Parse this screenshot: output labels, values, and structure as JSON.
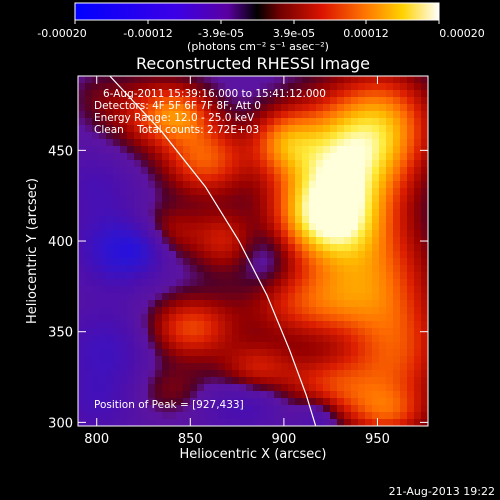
{
  "chart_data": {
    "type": "heatmap",
    "title": "Reconstructed RHESSI Image",
    "xlabel": "Heliocentric X (arcsec)",
    "ylabel": "Heliocentric Y (arcsec)",
    "xlim": [
      790,
      977
    ],
    "ylim": [
      298,
      491
    ],
    "xticks": [
      800,
      850,
      900,
      950
    ],
    "yticks": [
      300,
      350,
      400,
      450
    ],
    "colorbar": {
      "ticks": [
        "-0.00020",
        "-0.00012",
        "-3.9e-05",
        "3.9e-05",
        "0.00012",
        "0.00020"
      ],
      "tick_values": [
        -0.0002,
        -0.00012,
        -3.9e-05,
        3.9e-05,
        0.00012,
        0.0002
      ],
      "range": [
        -0.0002,
        0.0002
      ],
      "units": "(photons cm⁻² s⁻¹ asec⁻²)"
    },
    "annotations": [
      "6-Aug-2011 15:39:16.000 to 15:41:12.000",
      "Detectors: 4F 5F 6F 7F 8F, Att 0",
      "Energy Range: 12.0 - 25.0 keV",
      "Clean    Total counts: 2.72E+03",
      "Position of Peak = [927,433]"
    ],
    "peak": [
      927,
      433
    ],
    "limb_line": [
      [
        807,
        491
      ],
      [
        835,
        460
      ],
      [
        858,
        430
      ],
      [
        876,
        400
      ],
      [
        891,
        370
      ],
      [
        903,
        340
      ],
      [
        912,
        315
      ],
      [
        917,
        298
      ]
    ],
    "sources": [
      {
        "x": 930,
        "y": 440,
        "amp": 1.0,
        "sx": 22,
        "sy": 25
      },
      {
        "x": 922,
        "y": 412,
        "amp": 0.7,
        "sx": 18,
        "sy": 15
      },
      {
        "x": 955,
        "y": 465,
        "amp": 0.55,
        "sx": 18,
        "sy": 20
      },
      {
        "x": 900,
        "y": 455,
        "amp": 0.45,
        "sx": 12,
        "sy": 12
      },
      {
        "x": 945,
        "y": 385,
        "amp": 0.5,
        "sx": 22,
        "sy": 20
      },
      {
        "x": 915,
        "y": 365,
        "amp": 0.45,
        "sx": 25,
        "sy": 14
      },
      {
        "x": 960,
        "y": 340,
        "amp": 0.5,
        "sx": 18,
        "sy": 22
      },
      {
        "x": 925,
        "y": 320,
        "amp": 0.45,
        "sx": 20,
        "sy": 12
      },
      {
        "x": 955,
        "y": 305,
        "amp": 0.4,
        "sx": 15,
        "sy": 10
      },
      {
        "x": 858,
        "y": 445,
        "amp": 0.55,
        "sx": 16,
        "sy": 14
      },
      {
        "x": 830,
        "y": 470,
        "amp": 0.4,
        "sx": 18,
        "sy": 14
      },
      {
        "x": 845,
        "y": 470,
        "amp": 0.35,
        "sx": 12,
        "sy": 10
      },
      {
        "x": 868,
        "y": 400,
        "amp": 0.35,
        "sx": 12,
        "sy": 12
      },
      {
        "x": 835,
        "y": 405,
        "amp": 0.35,
        "sx": 14,
        "sy": 10
      },
      {
        "x": 850,
        "y": 352,
        "amp": 0.5,
        "sx": 16,
        "sy": 12
      },
      {
        "x": 885,
        "y": 330,
        "amp": 0.35,
        "sx": 14,
        "sy": 10
      },
      {
        "x": 840,
        "y": 318,
        "amp": 0.2,
        "sx": 14,
        "sy": 10
      },
      {
        "x": 810,
        "y": 395,
        "amp": -0.45,
        "sx": 14,
        "sy": 14
      },
      {
        "x": 825,
        "y": 398,
        "amp": -0.35,
        "sx": 10,
        "sy": 10
      },
      {
        "x": 805,
        "y": 340,
        "amp": -0.3,
        "sx": 16,
        "sy": 16
      },
      {
        "x": 800,
        "y": 430,
        "amp": -0.2,
        "sx": 14,
        "sy": 14
      },
      {
        "x": 880,
        "y": 310,
        "amp": -0.25,
        "sx": 18,
        "sy": 10
      },
      {
        "x": 918,
        "y": 303,
        "amp": -0.25,
        "sx": 8,
        "sy": 8
      },
      {
        "x": 800,
        "y": 310,
        "amp": -0.2,
        "sx": 14,
        "sy": 12
      },
      {
        "x": 890,
        "y": 390,
        "amp": -0.15,
        "sx": 10,
        "sy": 12
      },
      {
        "x": 800,
        "y": 480,
        "amp": 0.1,
        "sx": 10,
        "sy": 10
      }
    ]
  },
  "footer": {
    "timestamp": "21-Aug-2013 19:22"
  }
}
